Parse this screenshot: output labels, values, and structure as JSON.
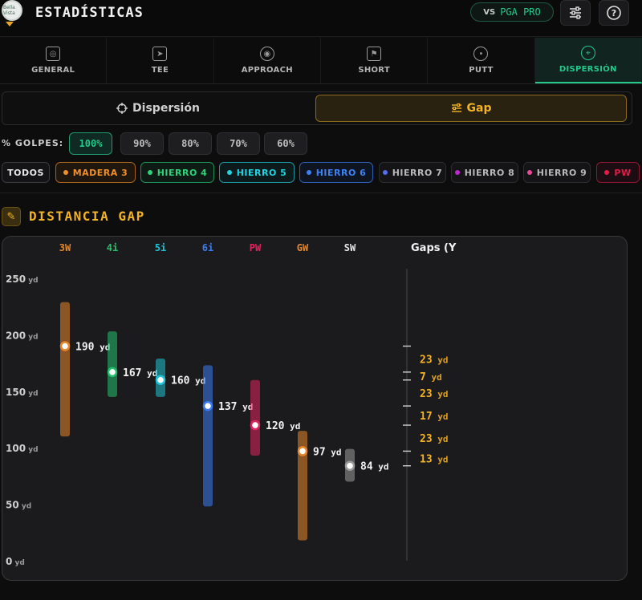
{
  "header": {
    "title": "ESTADÍSTICAS",
    "logo_text": "Bella Vista",
    "vs_label": "VS",
    "compare_label": "PGA PRO"
  },
  "tabs": [
    {
      "label": "GENERAL",
      "icon": "medal-icon",
      "active": false
    },
    {
      "label": "TEE",
      "icon": "navigation-icon",
      "active": false
    },
    {
      "label": "APPROACH",
      "icon": "target-icon",
      "active": false
    },
    {
      "label": "SHORT",
      "icon": "flag-icon",
      "active": false
    },
    {
      "label": "PUTT",
      "icon": "circle-dot-icon",
      "active": false
    },
    {
      "label": "DISPERSIÓN",
      "icon": "crosshair-icon",
      "active": true
    }
  ],
  "mode": {
    "dispersion_label": "Dispersión",
    "gap_label": "Gap",
    "selected": "Gap"
  },
  "golpes": {
    "label": "% GOLPES:",
    "options": [
      "100%",
      "90%",
      "80%",
      "70%",
      "60%"
    ],
    "selected": "100%"
  },
  "clubs": [
    {
      "label": "TODOS",
      "color": "#cfcfcf",
      "selected": false
    },
    {
      "label": "MADERA 3",
      "color": "#f0902a",
      "selected": true
    },
    {
      "label": "HIERRO 4",
      "color": "#2bd37a",
      "selected": true
    },
    {
      "label": "HIERRO 5",
      "color": "#22d3e0",
      "selected": true
    },
    {
      "label": "HIERRO 6",
      "color": "#3b82f6",
      "selected": true
    },
    {
      "label": "HIERRO 7",
      "color": "#4f6ff0",
      "selected": false
    },
    {
      "label": "HIERRO 8",
      "color": "#c026d3",
      "selected": false
    },
    {
      "label": "HIERRO 9",
      "color": "#ec4899",
      "selected": false
    },
    {
      "label": "PW",
      "color": "#e11d48",
      "selected": true
    }
  ],
  "section": {
    "title": "DISTANCIA GAP"
  },
  "chart_data": {
    "type": "range-bar",
    "unit": "yd",
    "ylim": [
      0,
      250
    ],
    "yticks": [
      0,
      50,
      100,
      150,
      200,
      250
    ],
    "categories": [
      "3W",
      "4i",
      "5i",
      "6i",
      "PW",
      "GW",
      "SW"
    ],
    "colors": [
      "#e8862a",
      "#22c26e",
      "#1fc2d4",
      "#3b7bf0",
      "#e0245e",
      "#e8862a",
      "#9a9a9a"
    ],
    "avg": [
      190,
      167,
      160,
      137,
      120,
      97,
      84
    ],
    "min": [
      110,
      145,
      145,
      48,
      93,
      18,
      70
    ],
    "max": [
      229,
      203,
      179,
      173,
      160,
      115,
      99
    ],
    "labels": [
      "190 yd",
      "167 yd",
      "160 yd",
      "137 yd",
      "120 yd",
      "97 yd",
      "84 yd"
    ],
    "gaps_title": "Gaps (Y",
    "gaps": [
      "23 yd",
      "7 yd",
      "23 yd",
      "17 yd",
      "23 yd",
      "13 yd"
    ]
  }
}
